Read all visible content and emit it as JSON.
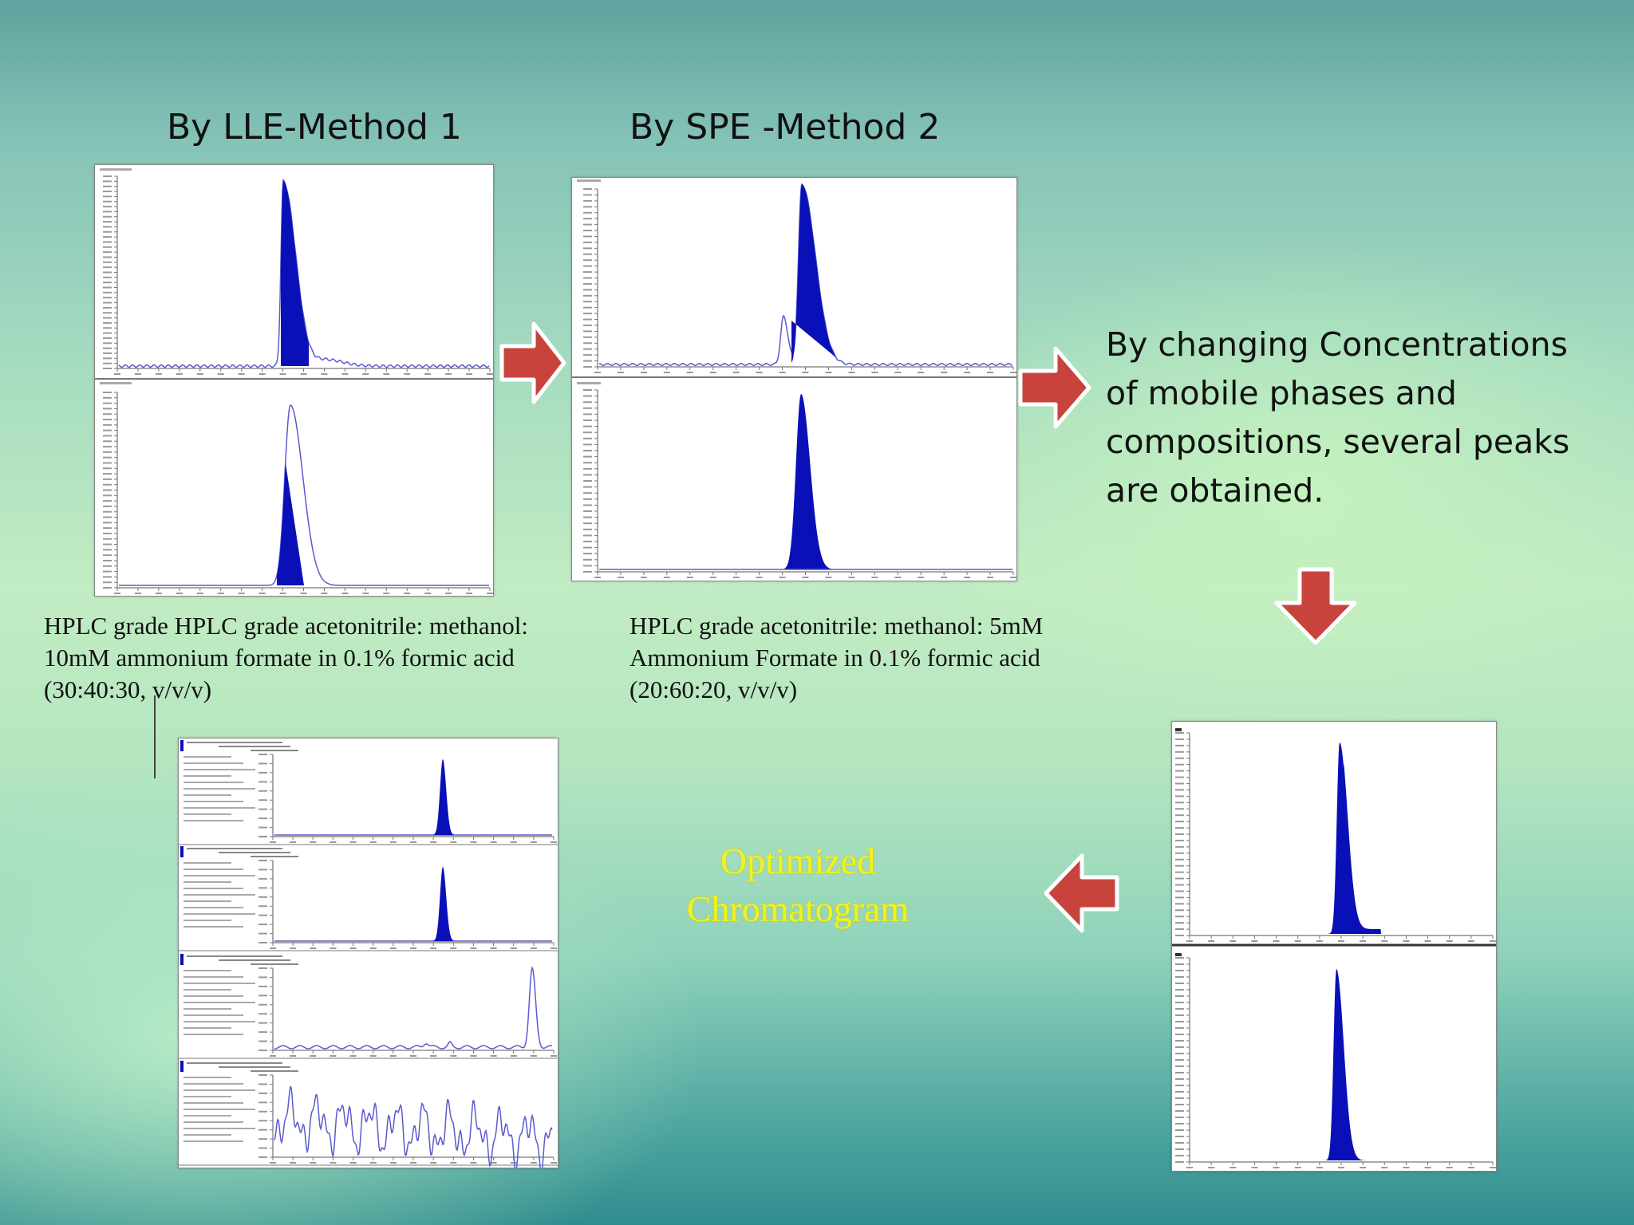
{
  "headings": {
    "method1": "By LLE-Method 1",
    "method2": "By SPE -Method 2"
  },
  "captions": {
    "method1": [
      "HPLC grade HPLC grade acetonitrile: methanol:",
      "10mM ammonium formate in 0.1% formic acid",
      "(30:40:30, v/v/v)"
    ],
    "method2": [
      "HPLC grade acetonitrile: methanol: 5mM",
      "Ammonium Formate in 0.1% formic acid",
      "(20:60:20, v/v/v)"
    ]
  },
  "side_text": "By changing Concentrations of mobile phases and compositions, several peaks are obtained.",
  "optimized_label": [
    "Optimized",
    "Chromatogram"
  ],
  "colors": {
    "peak_fill": "#0a10b8",
    "trace": "#5a5ad0",
    "arrow": "#c9433d",
    "optimized_text": "#f3f31a"
  }
}
